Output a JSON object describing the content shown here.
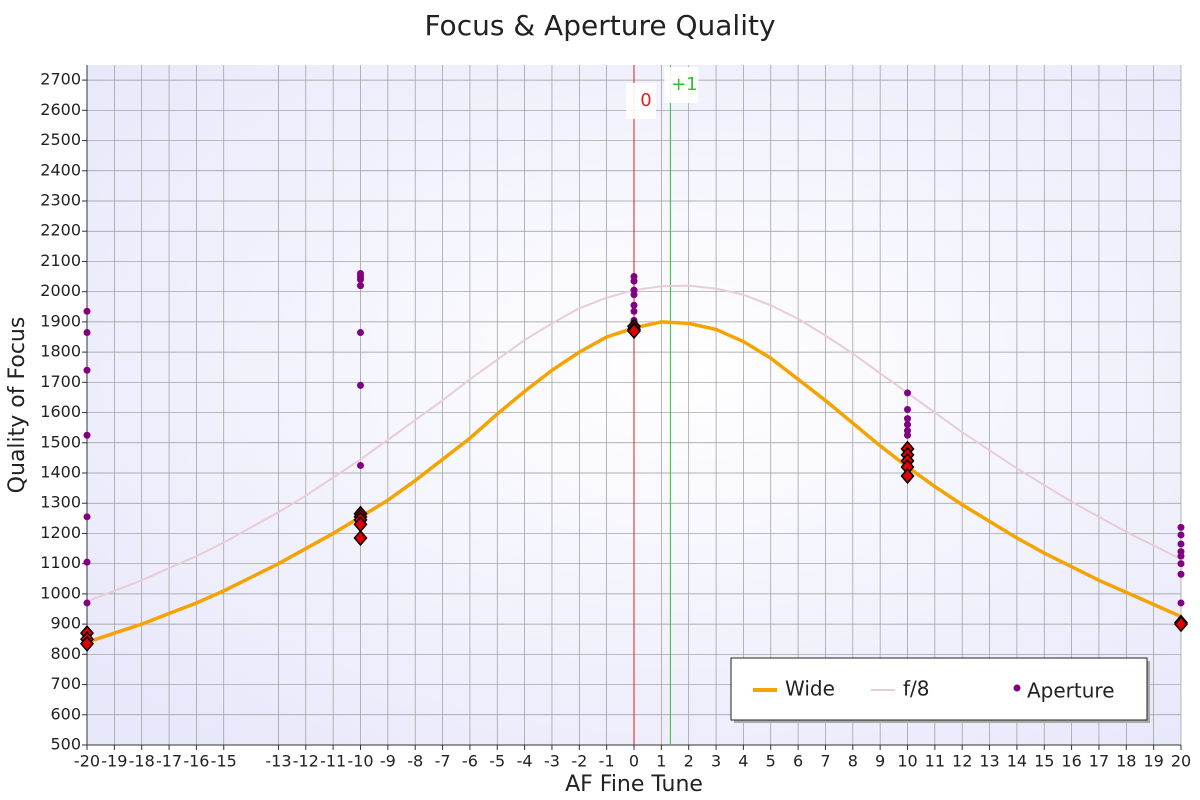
{
  "chart_data": {
    "type": "line",
    "title": "Focus & Aperture Quality",
    "x_label": "AF Fine Tune",
    "y_label": "Quality of Focus",
    "xlim": [
      -20,
      20
    ],
    "ylim": [
      500,
      2750
    ],
    "xticks": [
      -20,
      -19,
      -18,
      -17,
      -16,
      -15,
      -13,
      -12,
      -11,
      -10,
      -9,
      -8,
      -7,
      -6,
      -5,
      -4,
      -3,
      -2,
      -1,
      0,
      1,
      2,
      3,
      4,
      5,
      6,
      7,
      8,
      9,
      10,
      11,
      12,
      13,
      14,
      15,
      16,
      17,
      18,
      19,
      20
    ],
    "yticks": [
      500,
      600,
      700,
      800,
      900,
      1000,
      1100,
      1200,
      1300,
      1400,
      1500,
      1600,
      1700,
      1800,
      1900,
      2000,
      2100,
      2200,
      2300,
      2400,
      2500,
      2600,
      2700
    ],
    "grid": true,
    "legend": "bottom-right",
    "x": [
      -20,
      -19,
      -18,
      -17,
      -16,
      -15,
      -14,
      -13,
      -12,
      -11,
      -10,
      -9,
      -8,
      -7,
      -6,
      -5,
      -4,
      -3,
      -2,
      -1,
      0,
      1,
      2,
      3,
      4,
      5,
      6,
      7,
      8,
      9,
      10,
      11,
      12,
      13,
      14,
      15,
      16,
      17,
      18,
      19,
      20
    ],
    "series": [
      {
        "name": "f/8",
        "type": "line",
        "color": "#e8cdd8",
        "values": [
          975,
          1010,
          1045,
          1085,
          1125,
          1170,
          1220,
          1270,
          1325,
          1385,
          1445,
          1510,
          1575,
          1640,
          1710,
          1775,
          1840,
          1895,
          1945,
          1980,
          2005,
          2018,
          2020,
          2010,
          1990,
          1955,
          1910,
          1855,
          1795,
          1730,
          1665,
          1600,
          1535,
          1475,
          1415,
          1360,
          1305,
          1255,
          1205,
          1160,
          1115
        ]
      },
      {
        "name": "Wide",
        "type": "line",
        "color": "#f5a300",
        "values": [
          840,
          870,
          900,
          935,
          970,
          1010,
          1055,
          1100,
          1150,
          1200,
          1255,
          1310,
          1375,
          1445,
          1515,
          1595,
          1670,
          1740,
          1800,
          1850,
          1880,
          1900,
          1895,
          1875,
          1835,
          1780,
          1710,
          1640,
          1565,
          1490,
          1420,
          1355,
          1295,
          1240,
          1185,
          1135,
          1090,
          1045,
          1005,
          965,
          925
        ]
      },
      {
        "name": "Aperture",
        "type": "scatter",
        "color": "#800080",
        "x": [
          -20,
          -20,
          -20,
          -20,
          -20,
          -20,
          -20,
          -10,
          -10,
          -10,
          -10,
          -10,
          -10,
          -10,
          0,
          0,
          0,
          0,
          0,
          0,
          0,
          10,
          10,
          10,
          10,
          10,
          10,
          20,
          20,
          20,
          20,
          20,
          20,
          20,
          20
        ],
        "values": [
          1935,
          1865,
          1740,
          1525,
          1255,
          1105,
          970,
          2060,
          2050,
          2040,
          2020,
          1865,
          1690,
          1425,
          2050,
          2035,
          2005,
          1990,
          1955,
          1935,
          1905,
          1665,
          1610,
          1580,
          1560,
          1540,
          1525,
          1220,
          1195,
          1165,
          1140,
          1125,
          1100,
          1065,
          970
        ]
      },
      {
        "type": "diamond",
        "color": "#e00000",
        "x": [
          -20,
          -20,
          -20,
          -10,
          -10,
          -10,
          -10,
          -10,
          0,
          0,
          0,
          10,
          10,
          10,
          10,
          10,
          20,
          20
        ],
        "values": [
          870,
          850,
          835,
          1265,
          1255,
          1245,
          1230,
          1185,
          1885,
          1875,
          1870,
          1480,
          1460,
          1440,
          1420,
          1390,
          905,
          900
        ]
      }
    ],
    "annotations": [
      {
        "x": 0,
        "label": "0",
        "color": "#e02020"
      },
      {
        "x": 1.33,
        "label": "+1",
        "color": "#30c030"
      }
    ]
  }
}
